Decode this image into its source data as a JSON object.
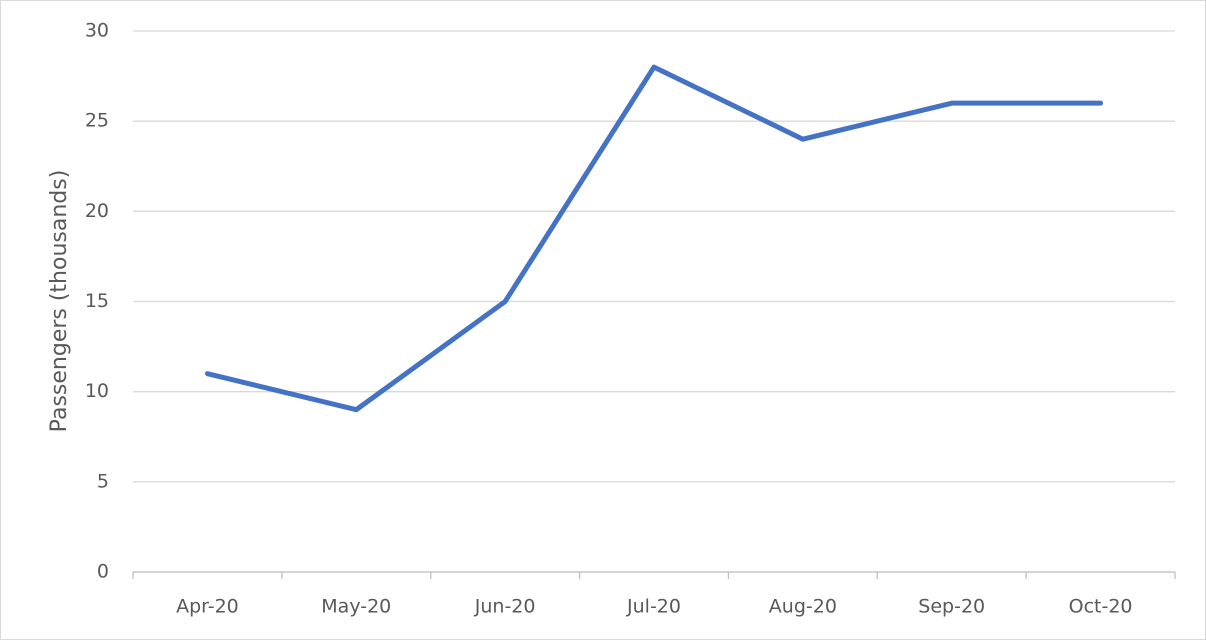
{
  "chart_data": {
    "type": "line",
    "y_label": "Passengers (thousands)",
    "categories": [
      "Apr-20",
      "May-20",
      "Jun-20",
      "Jul-20",
      "Aug-20",
      "Sep-20",
      "Oct-20"
    ],
    "values": [
      11,
      9,
      15,
      28,
      24,
      26,
      26
    ],
    "color": "#4472c4",
    "ylim": [
      0,
      30
    ],
    "yticks": [
      0,
      5,
      10,
      15,
      20,
      25,
      30
    ],
    "grid": true
  }
}
